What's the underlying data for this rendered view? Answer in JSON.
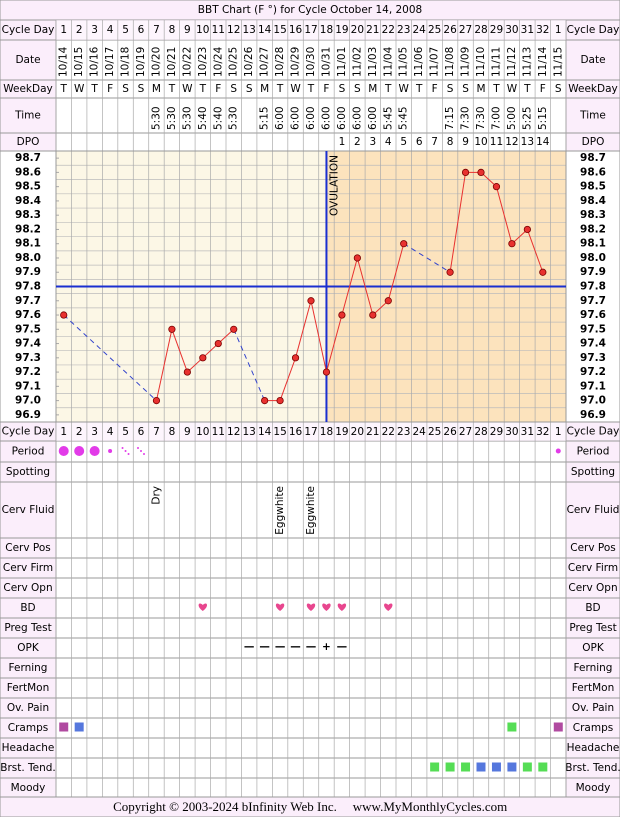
{
  "title": "BBT Chart (F °) for Cycle October 14, 2008",
  "top_row_labels": [
    "Cycle Day",
    "Date",
    "WeekDay",
    "Time",
    "DPO"
  ],
  "lower_row_labels": [
    "Cycle Day",
    "Period",
    "Spotting",
    "Cerv Fluid",
    "Cerv Pos",
    "Cerv Firm",
    "Cerv Opn",
    "BD",
    "Preg Test",
    "OPK",
    "Ferning",
    "FertMon",
    "Ov. Pain",
    "Cramps",
    "Headache",
    "Brst. Tend.",
    "Moody"
  ],
  "cycle_days": [
    "1",
    "2",
    "3",
    "4",
    "5",
    "6",
    "7",
    "8",
    "9",
    "10",
    "11",
    "12",
    "13",
    "14",
    "15",
    "16",
    "17",
    "18",
    "19",
    "20",
    "21",
    "22",
    "23",
    "24",
    "25",
    "26",
    "27",
    "28",
    "29",
    "30",
    "31",
    "32",
    "1"
  ],
  "weekdays": [
    "T",
    "W",
    "T",
    "F",
    "S",
    "S",
    "M",
    "T",
    "W",
    "T",
    "F",
    "S",
    "S",
    "M",
    "T",
    "W",
    "T",
    "F",
    "S",
    "S",
    "M",
    "T",
    "W",
    "T",
    "F",
    "S",
    "S",
    "M",
    "T",
    "W",
    "T",
    "F",
    "S"
  ],
  "times": [
    null,
    null,
    null,
    null,
    null,
    null,
    "5:30",
    "5:30",
    "5:30",
    "5:40",
    "5:40",
    "5:30",
    null,
    "5:15",
    "6:00",
    "6:00",
    "6:00",
    "6:00",
    "6:00",
    "6:00",
    "6:00",
    "5:45",
    "5:45",
    null,
    null,
    "7:15",
    "7:30",
    "7:30",
    "7:00",
    "5:00",
    "5:25",
    "5:15",
    null
  ],
  "dpo": [
    null,
    null,
    null,
    null,
    null,
    null,
    null,
    null,
    null,
    null,
    null,
    null,
    null,
    null,
    null,
    null,
    null,
    null,
    "1",
    "2",
    "3",
    "4",
    "5",
    "6",
    "7",
    "8",
    "9",
    "10",
    "11",
    "12",
    "13",
    "14",
    null
  ],
  "cervical_fluid": [
    null,
    null,
    null,
    null,
    null,
    null,
    "Dry",
    null,
    null,
    null,
    null,
    null,
    null,
    null,
    "Eggwhite",
    null,
    "Eggwhite",
    null,
    null,
    null,
    null,
    null,
    null,
    null,
    null,
    null,
    null,
    null,
    null,
    null,
    null,
    null,
    null
  ],
  "opk": [
    null,
    null,
    null,
    null,
    null,
    null,
    null,
    null,
    null,
    null,
    null,
    null,
    "—",
    "—",
    "—",
    "—",
    "—",
    "+",
    "—",
    null,
    null,
    null,
    null,
    null,
    null,
    null,
    null,
    null,
    null,
    null,
    null,
    null,
    null
  ],
  "copyright": "Copyright © 2003-2024 bInfinity Web Inc.",
  "website": "www.MyMonthlyCycles.com",
  "chart_data": {
    "type": "line",
    "categories": [
      "10/14",
      "10/15",
      "10/16",
      "10/17",
      "10/18",
      "10/19",
      "10/20",
      "10/21",
      "10/22",
      "10/23",
      "10/24",
      "10/25",
      "10/26",
      "10/27",
      "10/28",
      "10/29",
      "10/30",
      "10/31",
      "11/01",
      "11/02",
      "11/03",
      "11/04",
      "11/05",
      "11/06",
      "11/07",
      "11/08",
      "11/09",
      "11/10",
      "11/11",
      "11/12",
      "11/13",
      "11/14",
      "11/15"
    ],
    "series": [
      {
        "name": "Temperature",
        "color": "#e8312f",
        "values": [
          97.6,
          null,
          null,
          null,
          null,
          null,
          97.0,
          97.5,
          97.2,
          97.3,
          97.4,
          97.5,
          null,
          97.0,
          97.0,
          97.3,
          97.7,
          97.2,
          97.6,
          98.0,
          97.6,
          97.7,
          98.1,
          null,
          null,
          97.9,
          98.6,
          98.6,
          98.5,
          98.1,
          98.2,
          97.9,
          null
        ]
      }
    ],
    "ylim": [
      96.85,
      98.75
    ],
    "yticks": [
      98.7,
      98.6,
      98.5,
      98.4,
      98.3,
      98.2,
      98.1,
      {
        "value": 98.0,
        "label": "98.0"
      },
      97.9,
      97.8,
      97.7,
      97.6,
      97.5,
      97.4,
      97.3,
      97.2,
      97.1,
      {
        "value": 97.0,
        "label": "97.0"
      },
      96.9
    ],
    "coverline": 97.8,
    "ovulation": {
      "label": "OVULATION",
      "category": "10/31"
    }
  }
}
